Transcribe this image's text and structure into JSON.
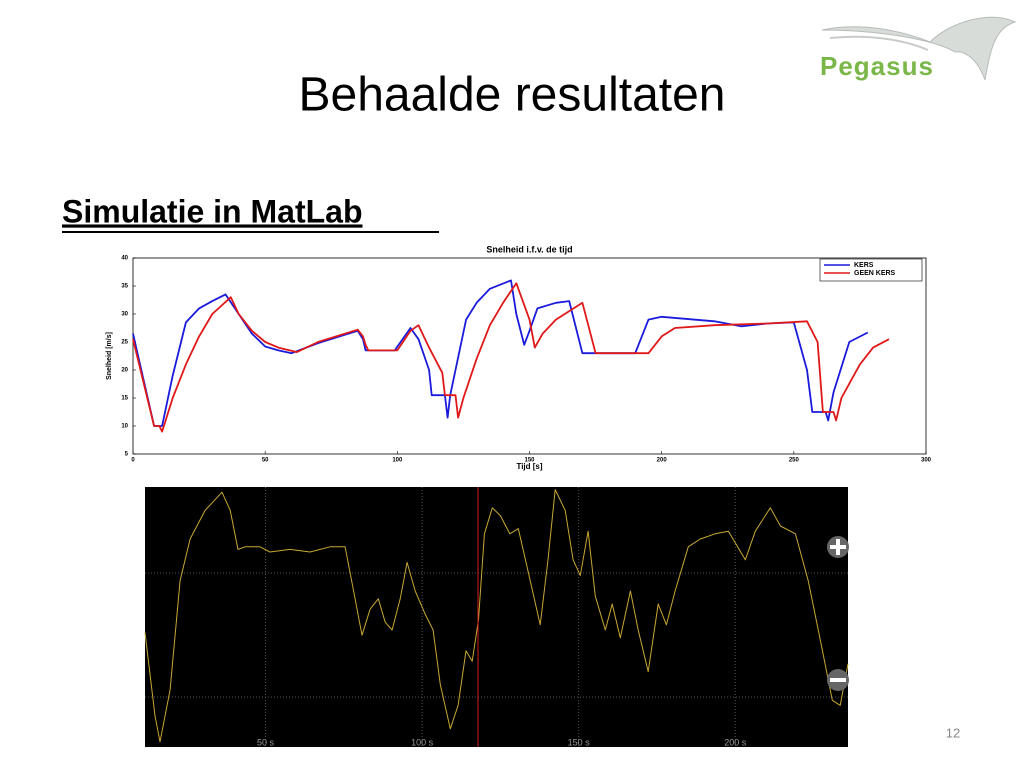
{
  "slide": {
    "title": "Behaalde resultaten",
    "heading": "Simulatie in MatLab",
    "logo": "Pegasus",
    "page_number": 12
  },
  "chart_data": [
    {
      "type": "line",
      "title": "Snelheid i.f.v. de tijd",
      "xlabel": "Tijd [s]",
      "ylabel": "Snelheid [m/s]",
      "xlim": [
        0,
        300
      ],
      "ylim": [
        5,
        40
      ],
      "xticks": [
        0,
        50,
        100,
        150,
        200,
        250,
        300
      ],
      "yticks": [
        5,
        10,
        15,
        20,
        25,
        30,
        35,
        40
      ],
      "legend": "upper right",
      "series": [
        {
          "name": "KERS",
          "color": "#1a1adc",
          "x": [
            0,
            8,
            11,
            15,
            20,
            25,
            30,
            35,
            40,
            45,
            50,
            55,
            60,
            70,
            85,
            87,
            88,
            96,
            99,
            105,
            108,
            112,
            113,
            118,
            119,
            120,
            122,
            126,
            130,
            135,
            143,
            145,
            148,
            150,
            153,
            160,
            165,
            170,
            190,
            195,
            200,
            220,
            230,
            240,
            250,
            255,
            257,
            262,
            263,
            265,
            271,
            278
          ],
          "values": [
            26.5,
            10,
            10,
            19,
            28.5,
            31,
            32.3,
            33.5,
            30,
            26.5,
            24.2,
            23.5,
            23,
            24.8,
            27,
            25.5,
            23.5,
            23.5,
            23.5,
            27.5,
            25.5,
            20,
            15.5,
            15.5,
            11.5,
            15.5,
            20,
            29,
            32,
            34.5,
            36,
            30,
            24.5,
            27,
            31,
            32,
            32.3,
            23,
            23,
            29,
            29.5,
            28.7,
            27.8,
            28.3,
            28.5,
            20,
            12.5,
            12.5,
            11,
            16,
            25,
            26.7
          ]
        },
        {
          "name": "GEEN KERS",
          "color": "#e01818",
          "x": [
            0,
            8,
            10,
            11,
            15,
            20,
            25,
            30,
            37,
            40,
            45,
            50,
            55,
            62,
            70,
            85,
            87,
            88,
            89,
            100,
            105,
            108,
            112,
            117,
            118,
            122,
            123,
            125,
            130,
            135,
            140,
            145,
            150,
            152,
            155,
            160,
            170,
            175,
            195,
            200,
            205,
            220,
            240,
            255,
            259,
            261,
            265,
            266,
            268,
            275,
            280,
            286
          ],
          "values": [
            25.5,
            10,
            10,
            9,
            15,
            21,
            26,
            30,
            33,
            30,
            27,
            25,
            24,
            23.2,
            25,
            27.2,
            26,
            24.5,
            23.5,
            23.5,
            27,
            28,
            24,
            19.5,
            15.5,
            15.5,
            11.5,
            15,
            22,
            28,
            32,
            35.5,
            29,
            24,
            26.5,
            29,
            32,
            23,
            23,
            26,
            27.5,
            28,
            28.3,
            28.7,
            25,
            12.5,
            12.5,
            11,
            15,
            21,
            24,
            25.5
          ]
        }
      ]
    },
    {
      "type": "line",
      "xlim": [
        11.5,
        236
      ],
      "ylim": [
        0,
        100
      ],
      "xticks": [
        {
          "value": 50,
          "label": "50 s"
        },
        {
          "value": 100,
          "label": "100 s"
        },
        {
          "value": 150,
          "label": "150 s"
        },
        {
          "value": 200,
          "label": "200 s"
        }
      ],
      "x": [
        11.5,
        14.7,
        16.3,
        19.5,
        22.7,
        25.9,
        30.7,
        36.1,
        38.7,
        41.2,
        43.5,
        48.2,
        51.4,
        57.8,
        64.2,
        70.6,
        75.4,
        78.6,
        80.8,
        83.4,
        86,
        88.2,
        90.4,
        93,
        95.2,
        97.8,
        101,
        103.5,
        105.8,
        109,
        111.5,
        114,
        116,
        118,
        119.9,
        122.4,
        125,
        128,
        130.7,
        134.5,
        137.7,
        140.2,
        142.5,
        145.7,
        148.2,
        150.5,
        153,
        155.3,
        158.5,
        160.7,
        163.3,
        166.5,
        169,
        172.2,
        175.4,
        178,
        180.8,
        185,
        188.8,
        193.6,
        197.8,
        203.2,
        206.4,
        211.2,
        214.4,
        219.2,
        223.3,
        227.2,
        231,
        233.5,
        236
      ],
      "series": [
        {
          "color": "#c8a832",
          "values": [
            44,
            12,
            2,
            22,
            64,
            80,
            91,
            98,
            91,
            76,
            77,
            77,
            75,
            76,
            75,
            77,
            77,
            57,
            43,
            53,
            57,
            48,
            45,
            57,
            71,
            60,
            51,
            45,
            24,
            7,
            16,
            37,
            33,
            49,
            82,
            92,
            89,
            82,
            84,
            64,
            47,
            72,
            99,
            91,
            72,
            66,
            83,
            58,
            45,
            55,
            42,
            60,
            45,
            29,
            55,
            47,
            60,
            77,
            80,
            82,
            83,
            72,
            83,
            92,
            85,
            82,
            64,
            41,
            18,
            16,
            32
          ]
        }
      ]
    }
  ]
}
